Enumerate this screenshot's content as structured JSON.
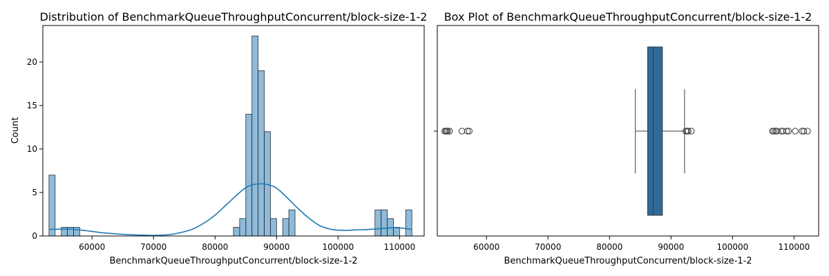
{
  "chart_data": [
    {
      "type": "histogram",
      "title": "Distribution of BenchmarkQueueThroughputConcurrent/block-size-1-2",
      "xlabel": "BenchmarkQueueThroughputConcurrent/block-size-1-2",
      "ylabel": "Count",
      "xlim": [
        52000,
        114000
      ],
      "ylim": [
        0,
        24.2
      ],
      "xticks": [
        60000,
        70000,
        80000,
        90000,
        100000,
        110000
      ],
      "yticks": [
        0,
        5,
        10,
        15,
        20
      ],
      "bin_width": 1000,
      "bars": [
        {
          "x": 53000,
          "count": 7
        },
        {
          "x": 55000,
          "count": 1
        },
        {
          "x": 56000,
          "count": 1
        },
        {
          "x": 57000,
          "count": 1
        },
        {
          "x": 83000,
          "count": 1
        },
        {
          "x": 84000,
          "count": 2
        },
        {
          "x": 85000,
          "count": 14
        },
        {
          "x": 86000,
          "count": 23
        },
        {
          "x": 87000,
          "count": 19
        },
        {
          "x": 88000,
          "count": 12
        },
        {
          "x": 89000,
          "count": 2
        },
        {
          "x": 91000,
          "count": 2
        },
        {
          "x": 92000,
          "count": 3
        },
        {
          "x": 106000,
          "count": 3
        },
        {
          "x": 107000,
          "count": 3
        },
        {
          "x": 108000,
          "count": 2
        },
        {
          "x": 109000,
          "count": 1
        },
        {
          "x": 111000,
          "count": 3
        }
      ],
      "kde": {
        "x": [
          53000,
          56000,
          58000,
          62000,
          66000,
          70000,
          73000,
          76000,
          78000,
          80000,
          82000,
          84000,
          85500,
          87500,
          89500,
          91000,
          93000,
          95000,
          97000,
          99000,
          101000,
          103000,
          105000,
          107000,
          109000,
          110500,
          112000
        ],
        "y": [
          0.75,
          0.8,
          0.7,
          0.35,
          0.15,
          0.08,
          0.2,
          0.7,
          1.4,
          2.4,
          3.7,
          5.0,
          5.75,
          6.0,
          5.7,
          4.9,
          3.5,
          2.2,
          1.2,
          0.75,
          0.65,
          0.7,
          0.75,
          0.85,
          0.95,
          0.9,
          0.75
        ]
      }
    },
    {
      "type": "box",
      "title": "Box Plot of BenchmarkQueueThroughputConcurrent/block-size-1-2",
      "xlabel": "BenchmarkQueueThroughputConcurrent/block-size-1-2",
      "ylabel": "",
      "xlim": [
        52000,
        114000
      ],
      "xticks": [
        60000,
        70000,
        80000,
        90000,
        100000,
        110000
      ],
      "q1": 86200,
      "median": 87100,
      "q3": 88600,
      "whisker_low": 84200,
      "whisker_high": 92200,
      "fliers": [
        53200,
        53400,
        53500,
        53700,
        54000,
        56000,
        56900,
        57200,
        92400,
        92600,
        92800,
        93300,
        106500,
        106700,
        107000,
        107200,
        107900,
        108200,
        108800,
        109100,
        110200,
        111300,
        111600,
        112200
      ]
    }
  ]
}
